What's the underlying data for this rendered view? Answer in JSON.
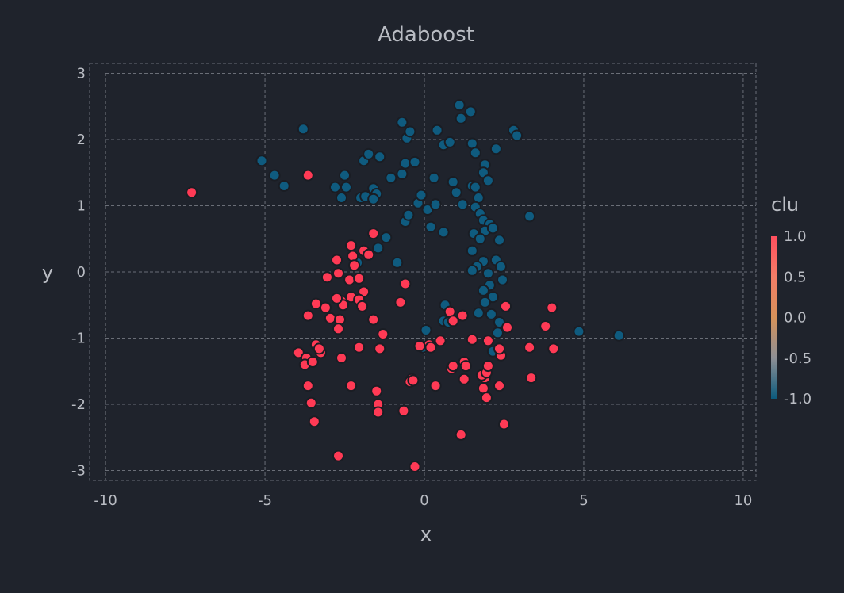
{
  "chart_data": {
    "type": "scatter",
    "title": "Adaboost",
    "xlabel": "x",
    "ylabel": "y",
    "xlim": [
      -10.5,
      10.4
    ],
    "ylim": [
      -3.15,
      3.15
    ],
    "xticks": [
      -10,
      -5,
      0,
      5,
      10
    ],
    "yticks": [
      3,
      2,
      1,
      0,
      -1,
      -2,
      -3
    ],
    "grid": true,
    "legend": {
      "title": "clu",
      "placement": "right",
      "ticks": [
        "1.0",
        "0.5",
        "0.0",
        "-0.5",
        "-1.0"
      ],
      "colorscale": [
        {
          "value": -1.0,
          "color": "#0b5a7d"
        },
        {
          "value": -0.5,
          "color": "#8d8f95"
        },
        {
          "value": 0.0,
          "color": "#d7925a"
        },
        {
          "value": 0.5,
          "color": "#f37d67"
        },
        {
          "value": 1.0,
          "color": "#ff4f5e"
        }
      ]
    },
    "marker_colors": {
      "1": "#ff3a55",
      "-1": "#0f5b7f"
    },
    "marker_outline": "#1a1d24",
    "series": [
      {
        "clu": -1,
        "points": [
          [
            -5.1,
            1.68
          ],
          [
            -4.7,
            1.46
          ],
          [
            -4.4,
            1.3
          ],
          [
            -3.8,
            2.16
          ],
          [
            -2.8,
            1.28
          ],
          [
            -2.6,
            1.12
          ],
          [
            -2.5,
            1.46
          ],
          [
            -2.45,
            1.28
          ],
          [
            -1.9,
            1.68
          ],
          [
            -1.75,
            1.78
          ],
          [
            -1.4,
            1.74
          ],
          [
            -2.0,
            1.12
          ],
          [
            -1.85,
            1.14
          ],
          [
            -1.6,
            1.26
          ],
          [
            -1.5,
            1.18
          ],
          [
            -1.6,
            1.1
          ],
          [
            -1.05,
            1.42
          ],
          [
            -0.7,
            1.48
          ],
          [
            -0.6,
            1.64
          ],
          [
            -0.3,
            1.66
          ],
          [
            -0.7,
            2.26
          ],
          [
            -0.55,
            2.02
          ],
          [
            -0.45,
            2.12
          ],
          [
            0.4,
            2.14
          ],
          [
            0.6,
            1.92
          ],
          [
            0.8,
            1.96
          ],
          [
            1.1,
            2.52
          ],
          [
            1.15,
            2.32
          ],
          [
            1.45,
            2.42
          ],
          [
            1.5,
            1.94
          ],
          [
            1.6,
            1.8
          ],
          [
            1.9,
            1.62
          ],
          [
            1.85,
            1.5
          ],
          [
            2.0,
            1.38
          ],
          [
            2.25,
            1.86
          ],
          [
            2.8,
            2.14
          ],
          [
            2.9,
            2.06
          ],
          [
            3.3,
            0.84
          ],
          [
            0.3,
            1.42
          ],
          [
            0.9,
            1.36
          ],
          [
            1.0,
            1.2
          ],
          [
            1.5,
            1.3
          ],
          [
            1.6,
            1.28
          ],
          [
            1.7,
            1.12
          ],
          [
            1.6,
            0.98
          ],
          [
            1.75,
            0.88
          ],
          [
            1.85,
            0.78
          ],
          [
            2.05,
            0.72
          ],
          [
            1.9,
            0.62
          ],
          [
            1.55,
            0.58
          ],
          [
            2.15,
            0.66
          ],
          [
            2.35,
            0.48
          ],
          [
            1.75,
            0.5
          ],
          [
            0.6,
            0.6
          ],
          [
            0.2,
            0.68
          ],
          [
            -0.6,
            0.76
          ],
          [
            -0.5,
            0.86
          ],
          [
            -0.2,
            1.04
          ],
          [
            0.1,
            0.94
          ],
          [
            0.35,
            1.02
          ],
          [
            -0.1,
            1.16
          ],
          [
            1.2,
            1.02
          ],
          [
            -1.2,
            0.52
          ],
          [
            -1.45,
            0.36
          ],
          [
            -2.1,
            0.14
          ],
          [
            -0.85,
            0.14
          ],
          [
            1.5,
            0.32
          ],
          [
            1.85,
            0.16
          ],
          [
            1.65,
            0.08
          ],
          [
            2.25,
            0.18
          ],
          [
            2.4,
            0.08
          ],
          [
            2.45,
            -0.12
          ],
          [
            1.5,
            0.02
          ],
          [
            2.0,
            -0.02
          ],
          [
            2.05,
            -0.2
          ],
          [
            1.85,
            -0.28
          ],
          [
            2.15,
            -0.38
          ],
          [
            1.9,
            -0.46
          ],
          [
            1.7,
            -0.62
          ],
          [
            2.1,
            -0.64
          ],
          [
            2.35,
            -0.76
          ],
          [
            2.3,
            -0.92
          ],
          [
            2.15,
            -1.2
          ],
          [
            0.65,
            -0.5
          ],
          [
            0.6,
            -0.74
          ],
          [
            0.75,
            -0.76
          ],
          [
            0.05,
            -0.88
          ],
          [
            -0.05,
            -1.14
          ],
          [
            4.85,
            -0.9
          ],
          [
            6.1,
            -0.96
          ]
        ]
      },
      {
        "clu": 1,
        "points": [
          [
            -7.3,
            1.2
          ],
          [
            -3.65,
            1.46
          ],
          [
            -1.6,
            0.58
          ],
          [
            -2.3,
            0.4
          ],
          [
            -2.25,
            0.24
          ],
          [
            -1.9,
            0.32
          ],
          [
            -1.75,
            0.26
          ],
          [
            -2.2,
            0.1
          ],
          [
            -2.75,
            0.18
          ],
          [
            -2.7,
            -0.02
          ],
          [
            -2.35,
            -0.12
          ],
          [
            -2.05,
            -0.1
          ],
          [
            -1.9,
            -0.3
          ],
          [
            -3.05,
            -0.08
          ],
          [
            -2.3,
            -0.38
          ],
          [
            -2.05,
            -0.42
          ],
          [
            -2.6,
            -0.44
          ],
          [
            -1.95,
            -0.52
          ],
          [
            -2.55,
            -0.5
          ],
          [
            -2.75,
            -0.4
          ],
          [
            -3.1,
            -0.54
          ],
          [
            -3.4,
            -0.48
          ],
          [
            -2.95,
            -0.7
          ],
          [
            -2.65,
            -0.72
          ],
          [
            -2.7,
            -0.86
          ],
          [
            -3.65,
            -0.66
          ],
          [
            -1.6,
            -0.72
          ],
          [
            -1.3,
            -0.94
          ],
          [
            -0.75,
            -0.46
          ],
          [
            -0.6,
            -0.18
          ],
          [
            -3.4,
            -1.1
          ],
          [
            -3.25,
            -1.22
          ],
          [
            -3.3,
            -1.16
          ],
          [
            -3.95,
            -1.22
          ],
          [
            -3.7,
            -1.3
          ],
          [
            -3.75,
            -1.4
          ],
          [
            -3.5,
            -1.36
          ],
          [
            -2.6,
            -1.3
          ],
          [
            -2.05,
            -1.14
          ],
          [
            -1.4,
            -1.16
          ],
          [
            -3.65,
            -1.72
          ],
          [
            -2.3,
            -1.72
          ],
          [
            -1.5,
            -1.8
          ],
          [
            -3.55,
            -1.98
          ],
          [
            -1.45,
            -2.0
          ],
          [
            -1.45,
            -2.12
          ],
          [
            -0.65,
            -2.1
          ],
          [
            -3.45,
            -2.26
          ],
          [
            -0.4,
            -1.62
          ],
          [
            -0.45,
            -1.66
          ],
          [
            -0.35,
            -1.64
          ],
          [
            0.35,
            -1.72
          ],
          [
            0.5,
            -1.04
          ],
          [
            0.15,
            -1.1
          ],
          [
            0.2,
            -1.14
          ],
          [
            -0.15,
            -1.12
          ],
          [
            0.8,
            -0.6
          ],
          [
            0.9,
            -0.74
          ],
          [
            1.2,
            -0.66
          ],
          [
            0.85,
            -1.46
          ],
          [
            0.9,
            -1.42
          ],
          [
            1.25,
            -1.36
          ],
          [
            1.3,
            -1.42
          ],
          [
            1.25,
            -1.62
          ],
          [
            1.5,
            -1.02
          ],
          [
            1.9,
            -1.6
          ],
          [
            1.8,
            -1.56
          ],
          [
            1.85,
            -1.76
          ],
          [
            1.95,
            -1.52
          ],
          [
            2.0,
            -1.42
          ],
          [
            2.0,
            -1.04
          ],
          [
            1.95,
            -1.9
          ],
          [
            2.35,
            -1.72
          ],
          [
            2.4,
            -1.26
          ],
          [
            2.35,
            -1.16
          ],
          [
            2.6,
            -0.84
          ],
          [
            2.55,
            -0.52
          ],
          [
            3.3,
            -1.14
          ],
          [
            3.35,
            -1.6
          ],
          [
            3.8,
            -0.82
          ],
          [
            4.0,
            -0.54
          ],
          [
            4.05,
            -1.16
          ],
          [
            1.15,
            -2.46
          ],
          [
            2.5,
            -2.3
          ],
          [
            -2.7,
            -2.78
          ],
          [
            -0.3,
            -2.94
          ]
        ]
      }
    ]
  }
}
